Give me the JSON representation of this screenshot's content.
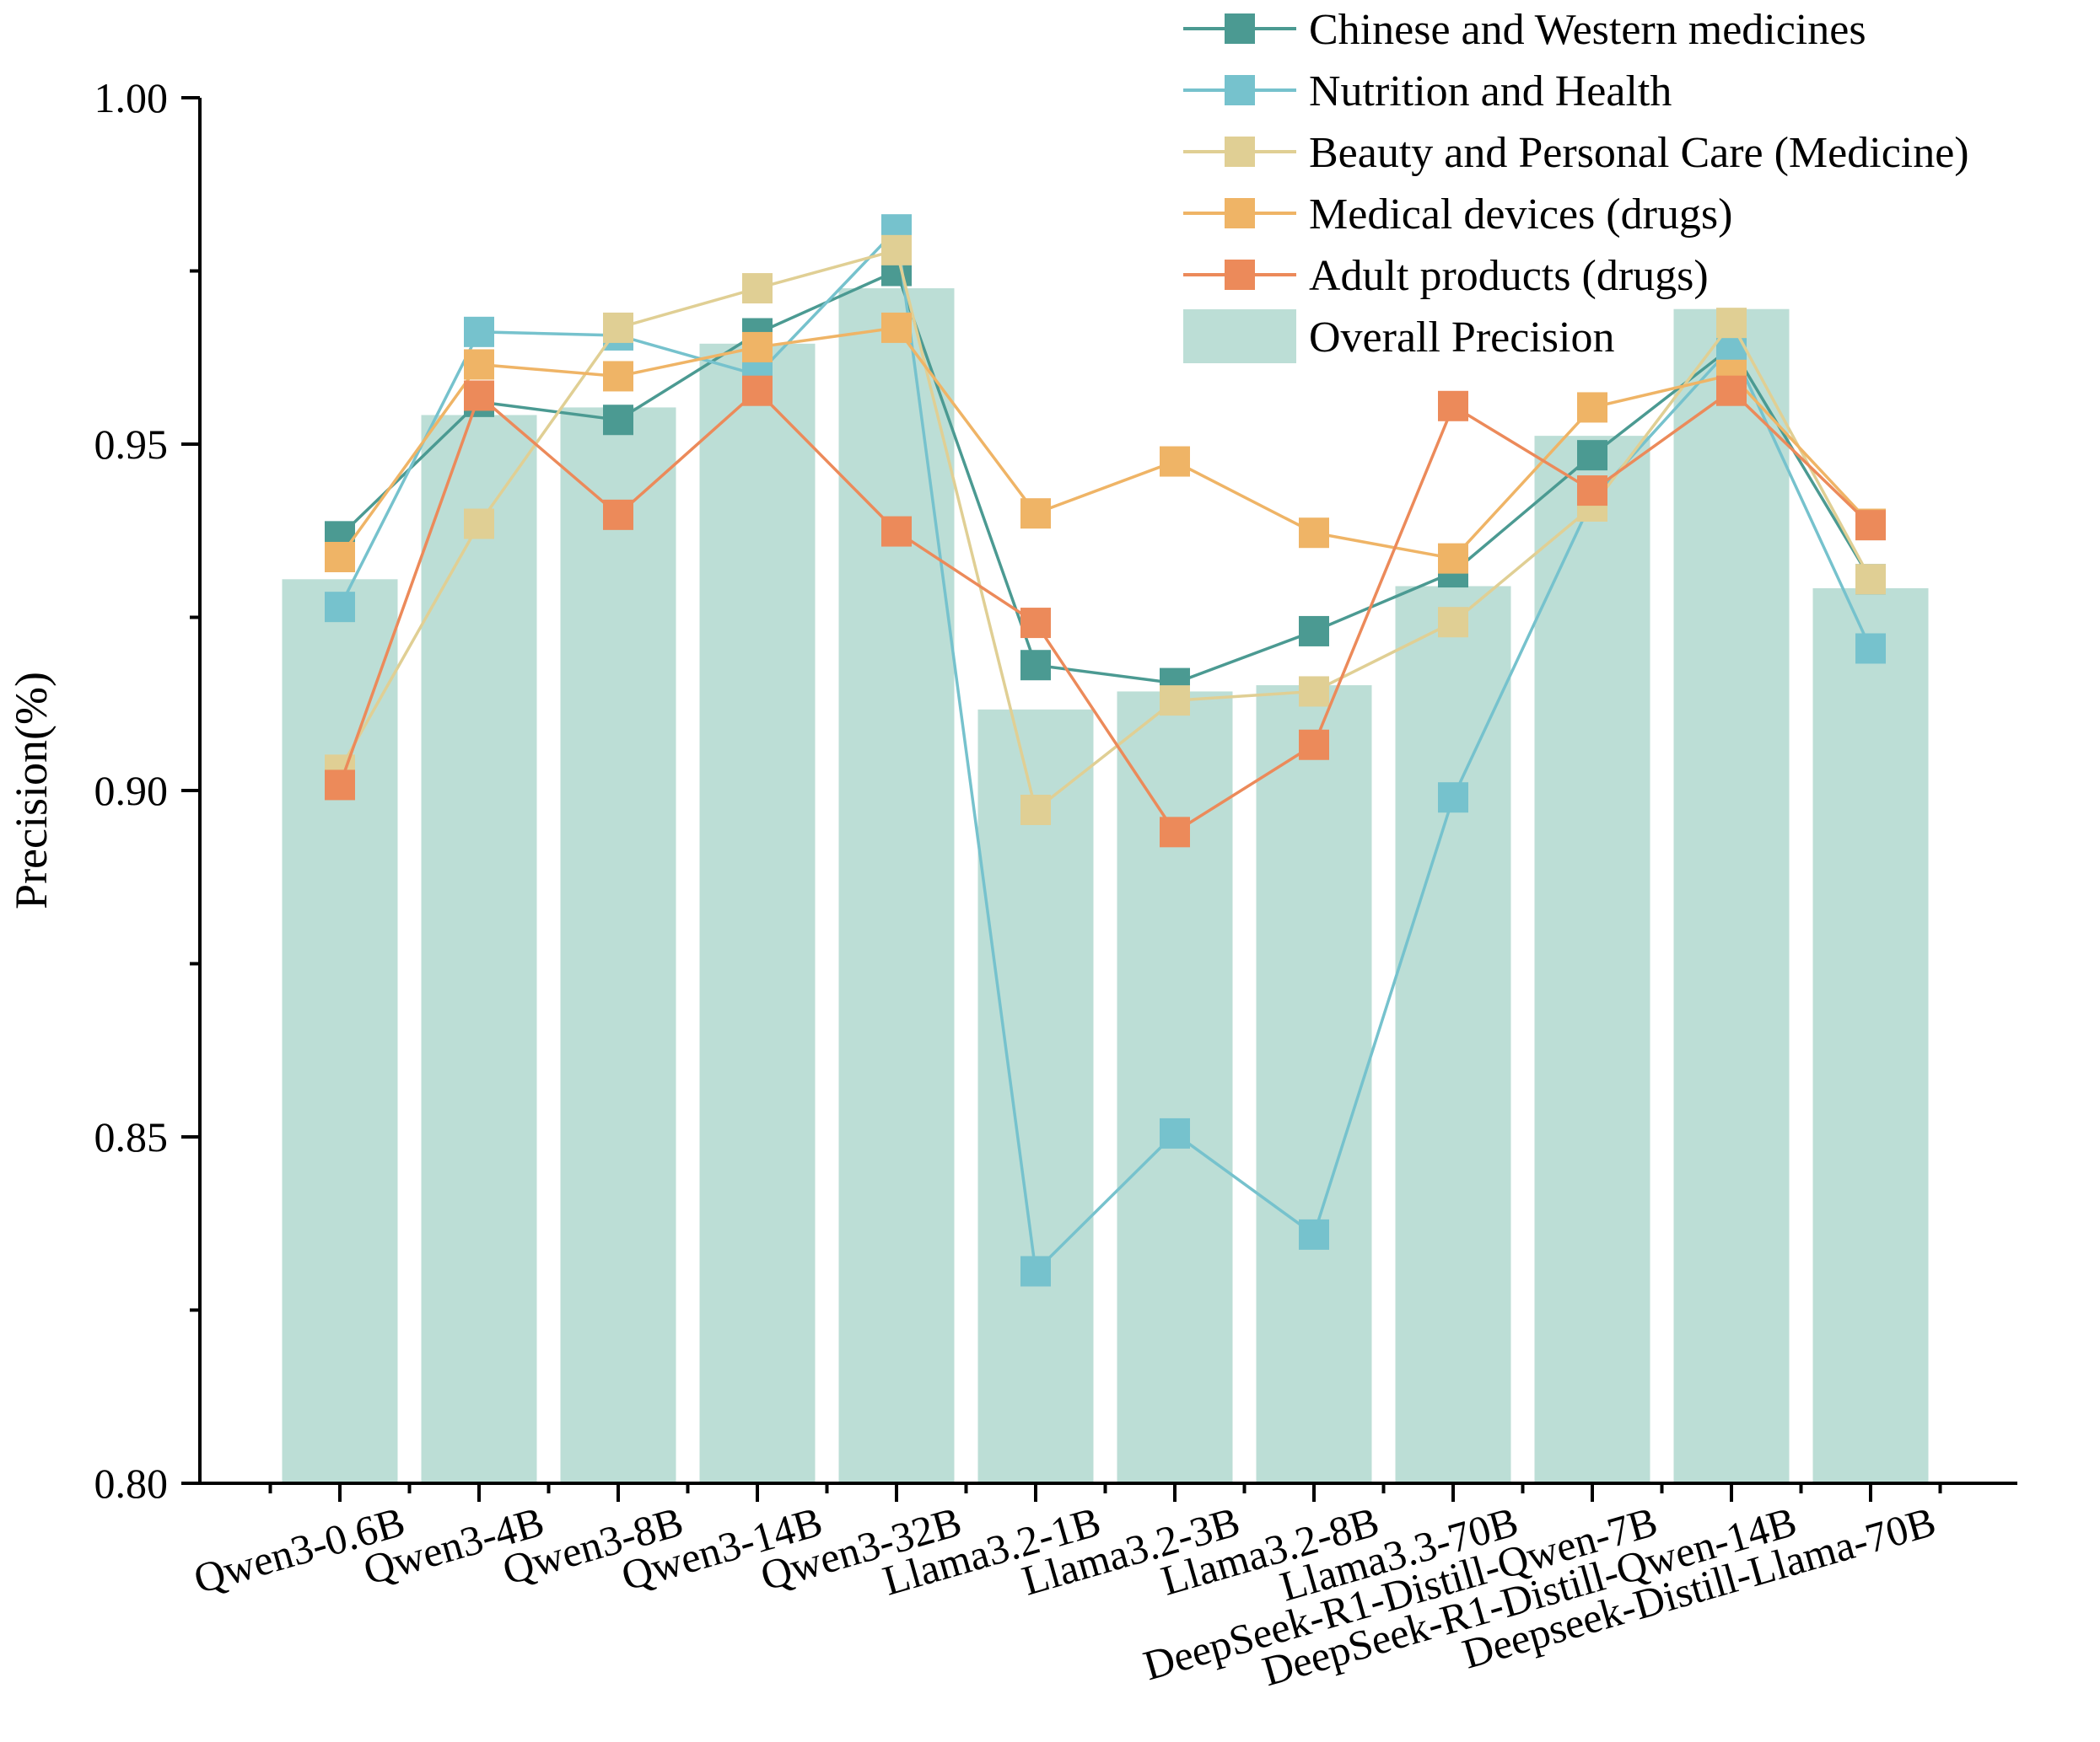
{
  "chart_data": {
    "type": "bar+line",
    "title": "",
    "xlabel": "",
    "ylabel": "Precision(%)",
    "ylim": [
      0.8,
      1.0
    ],
    "yticks": [
      "0.80",
      "0.85",
      "0.90",
      "0.95",
      "1.00"
    ],
    "categories": [
      "Qwen3-0.6B",
      "Qwen3-4B",
      "Qwen3-8B",
      "Qwen3-14B",
      "Qwen3-32B",
      "Llama3.2-1B",
      "Llama3.2-3B",
      "Llama3.2-8B",
      "Llama3.3-70B",
      "DeepSeek-R1-Distill-Qwen-7B",
      "DeepSeek-R1-Distill-Qwen-14B",
      "Deepseek-Distill-Llama-70B"
    ],
    "bars": {
      "name": "Overall Precision",
      "color": "#bcded6",
      "values": [
        0.9305,
        0.9542,
        0.9553,
        0.9645,
        0.9725,
        0.9117,
        0.9143,
        0.9152,
        0.9295,
        0.9512,
        0.9695,
        0.9292
      ]
    },
    "series": [
      {
        "name": "Chinese and Western medicines",
        "color": "#4b9a92",
        "values": [
          0.9367,
          0.9561,
          0.9535,
          0.966,
          0.975,
          0.9181,
          0.9155,
          0.923,
          0.9315,
          0.9484,
          0.964,
          0.9305
        ]
      },
      {
        "name": "Nutrition and Health",
        "color": "#76c2cd",
        "values": [
          0.9265,
          0.9662,
          0.9657,
          0.96,
          0.981,
          0.8306,
          0.8505,
          0.8359,
          0.899,
          0.942,
          0.964,
          0.9205
        ]
      },
      {
        "name": "Beauty and Personal Care (Medicine)",
        "color": "#e0cf94",
        "values": [
          0.903,
          0.9385,
          0.9668,
          0.9725,
          0.978,
          0.8972,
          0.913,
          0.9143,
          0.9243,
          0.941,
          0.9675,
          0.9305
        ]
      },
      {
        "name": "Medical devices (drugs)",
        "color": "#efb466",
        "values": [
          0.9337,
          0.9615,
          0.9598,
          0.964,
          0.9668,
          0.94,
          0.9475,
          0.9372,
          0.9335,
          0.9553,
          0.96,
          0.9385
        ]
      },
      {
        "name": "Adult products (drugs)",
        "color": "#ec8a5a",
        "values": [
          0.9008,
          0.957,
          0.9398,
          0.9577,
          0.9374,
          0.9242,
          0.894,
          0.9066,
          0.9555,
          0.9433,
          0.9577,
          0.9383
        ]
      }
    ],
    "legend_position": "top-right",
    "grid": false
  }
}
